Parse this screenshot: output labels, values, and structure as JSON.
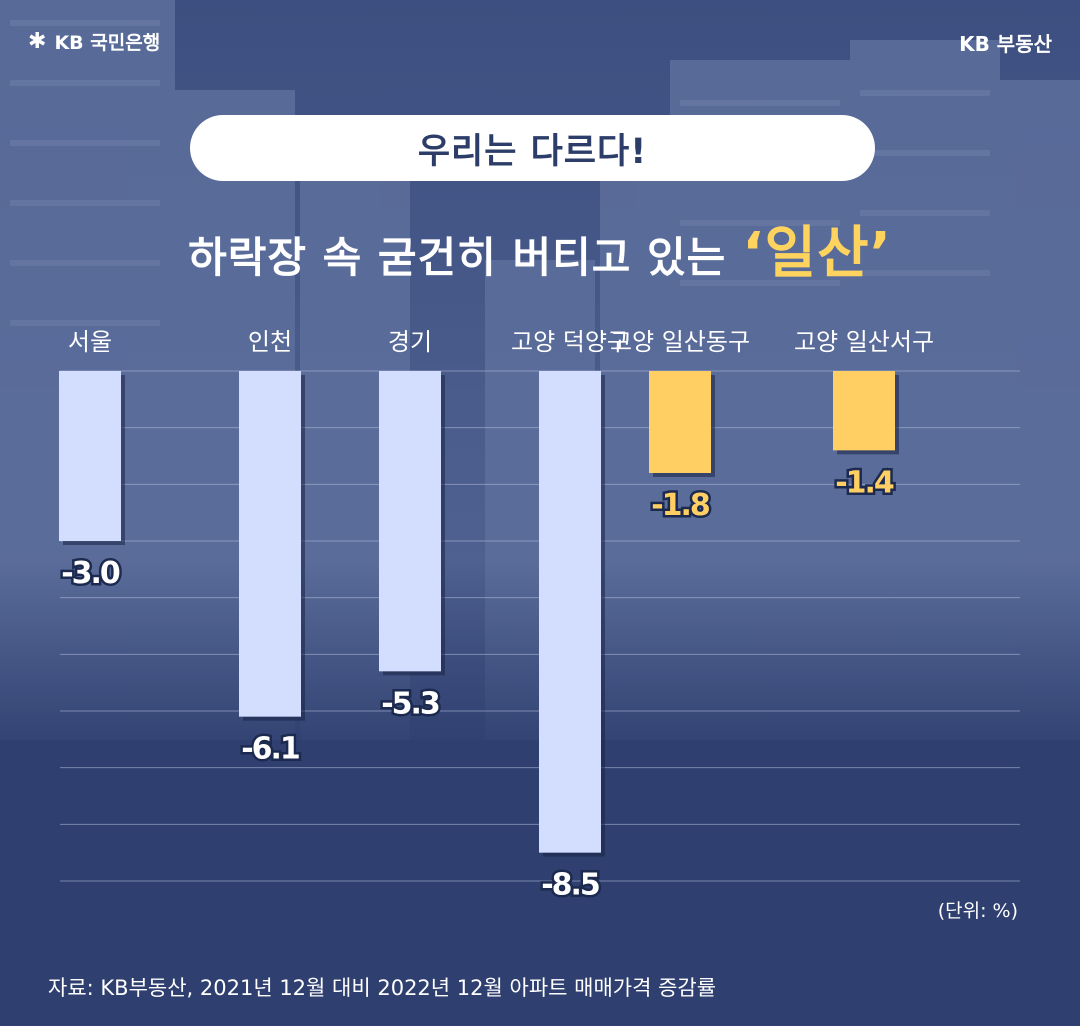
{
  "brand": {
    "left": "KB 국민은행",
    "right": "KB 부동산"
  },
  "header": {
    "pill": "우리는 다르다!",
    "headline": "하락장 속 굳건히 버티고 있는",
    "highlight": "‘일산’"
  },
  "chart_data": {
    "type": "bar",
    "categories": [
      "서울",
      "인천",
      "경기",
      "고양 덕양구",
      "고양 일산동구",
      "고양 일산서구"
    ],
    "values": [
      -3.0,
      -6.1,
      -5.3,
      -8.5,
      -1.8,
      -1.4
    ],
    "value_labels": [
      "-3.0",
      "-6.1",
      "-5.3",
      "-8.5",
      "-1.8",
      "-1.4"
    ],
    "highlight": [
      false,
      false,
      false,
      false,
      true,
      true
    ],
    "colors": {
      "normal": "#d3deff",
      "highlight": "#ffcf63",
      "normal_label": "#ffffff",
      "highlight_label": "#ffcf63"
    },
    "ylim": [
      -9,
      0
    ],
    "grid": true,
    "unit": "(단위: %)"
  },
  "footer": {
    "source": "자료: KB부동산, 2021년 12월 대비 2022년 12월 아파트 매매가격 증감률"
  }
}
